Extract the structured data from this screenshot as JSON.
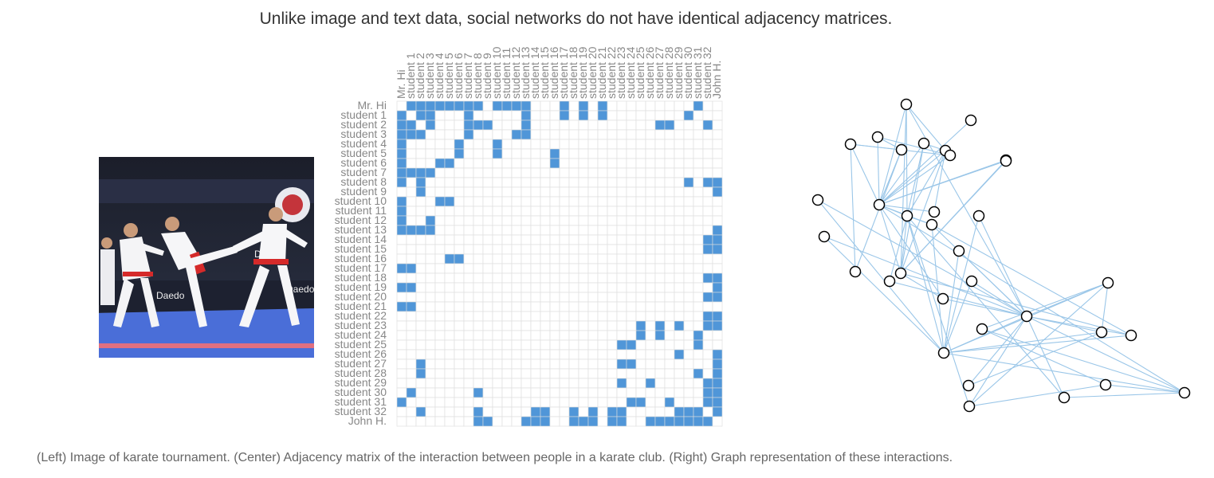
{
  "title": "Unlike image and text data, social networks do not have identical adjacency matrices.",
  "caption": "(Left) Image of karate tournament. (Center) Adjacency matrix of the interaction between people in a karate club. (Right) Graph representation of these interactions.",
  "colors": {
    "cell_on": "#5096d8",
    "cell_off": "#ffffff",
    "grid": "#dddddd",
    "label": "#888888",
    "edge": "#9ac6e8",
    "node_stroke": "#000000",
    "node_fill": "#ffffff"
  },
  "photo": {
    "semantic": "karate tournament photo: three karateka in white gi with red belts kicking on a blue mat, sponsor banners with Daedo lettering behind",
    "sign_text": "Daedo"
  },
  "matrix": {
    "labels": [
      "Mr. Hi",
      "student 1",
      "student 2",
      "student 3",
      "student 4",
      "student 5",
      "student 6",
      "student 7",
      "student 8",
      "student 9",
      "student 10",
      "student 11",
      "student 12",
      "student 13",
      "student 14",
      "student 15",
      "student 16",
      "student 17",
      "student 18",
      "student 19",
      "student 20",
      "student 21",
      "student 22",
      "student 23",
      "student 24",
      "student 25",
      "student 26",
      "student 27",
      "student 28",
      "student 29",
      "student 30",
      "student 31",
      "student 32",
      "John H."
    ]
  },
  "edges": [
    [
      0,
      1
    ],
    [
      0,
      2
    ],
    [
      0,
      3
    ],
    [
      0,
      4
    ],
    [
      0,
      5
    ],
    [
      0,
      6
    ],
    [
      0,
      7
    ],
    [
      0,
      8
    ],
    [
      0,
      10
    ],
    [
      0,
      11
    ],
    [
      0,
      12
    ],
    [
      0,
      13
    ],
    [
      0,
      17
    ],
    [
      0,
      19
    ],
    [
      0,
      21
    ],
    [
      0,
      31
    ],
    [
      1,
      2
    ],
    [
      1,
      3
    ],
    [
      1,
      7
    ],
    [
      1,
      13
    ],
    [
      1,
      17
    ],
    [
      1,
      19
    ],
    [
      1,
      21
    ],
    [
      1,
      30
    ],
    [
      2,
      3
    ],
    [
      2,
      7
    ],
    [
      2,
      8
    ],
    [
      2,
      9
    ],
    [
      2,
      13
    ],
    [
      2,
      27
    ],
    [
      2,
      28
    ],
    [
      2,
      32
    ],
    [
      3,
      7
    ],
    [
      3,
      12
    ],
    [
      3,
      13
    ],
    [
      4,
      6
    ],
    [
      4,
      10
    ],
    [
      5,
      6
    ],
    [
      5,
      10
    ],
    [
      5,
      16
    ],
    [
      6,
      16
    ],
    [
      8,
      30
    ],
    [
      8,
      32
    ],
    [
      8,
      33
    ],
    [
      9,
      33
    ],
    [
      13,
      33
    ],
    [
      14,
      32
    ],
    [
      14,
      33
    ],
    [
      15,
      32
    ],
    [
      15,
      33
    ],
    [
      18,
      32
    ],
    [
      18,
      33
    ],
    [
      19,
      33
    ],
    [
      20,
      32
    ],
    [
      20,
      33
    ],
    [
      22,
      32
    ],
    [
      22,
      33
    ],
    [
      23,
      25
    ],
    [
      23,
      27
    ],
    [
      23,
      29
    ],
    [
      23,
      32
    ],
    [
      23,
      33
    ],
    [
      24,
      25
    ],
    [
      24,
      27
    ],
    [
      24,
      31
    ],
    [
      25,
      31
    ],
    [
      26,
      29
    ],
    [
      26,
      33
    ],
    [
      27,
      33
    ],
    [
      28,
      31
    ],
    [
      28,
      33
    ],
    [
      29,
      32
    ],
    [
      29,
      33
    ],
    [
      30,
      32
    ],
    [
      30,
      33
    ],
    [
      31,
      32
    ],
    [
      31,
      33
    ],
    [
      32,
      33
    ]
  ]
}
